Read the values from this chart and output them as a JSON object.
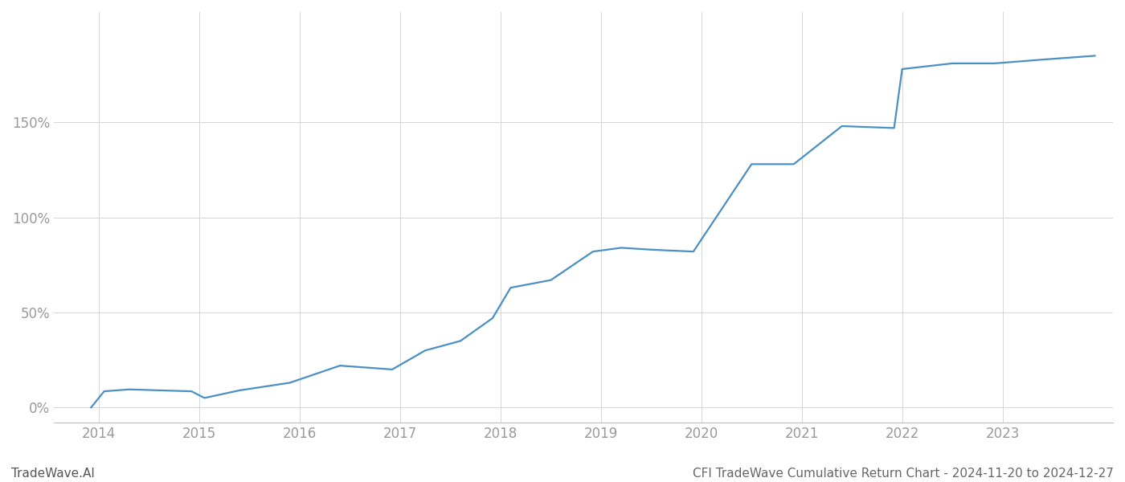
{
  "title": "CFI TradeWave Cumulative Return Chart - 2024-11-20 to 2024-12-27",
  "watermark": "TradeWave.AI",
  "line_color": "#4a90c4",
  "background_color": "#ffffff",
  "grid_color": "#d0d0d0",
  "x_years": [
    2014,
    2015,
    2016,
    2017,
    2018,
    2019,
    2020,
    2021,
    2022,
    2023
  ],
  "x_data": [
    2013.92,
    2014.05,
    2014.3,
    2014.6,
    2014.92,
    2015.05,
    2015.4,
    2015.9,
    2016.4,
    2016.92,
    2017.25,
    2017.6,
    2017.92,
    2018.1,
    2018.5,
    2018.92,
    2019.2,
    2019.5,
    2019.92,
    2020.5,
    2020.92,
    2021.4,
    2021.92,
    2022.0,
    2022.5,
    2022.92,
    2023.4,
    2023.92
  ],
  "y_data": [
    0.0,
    8.5,
    9.5,
    9.0,
    8.5,
    5.0,
    9.0,
    13.0,
    22.0,
    20.0,
    30.0,
    35.0,
    47.0,
    63.0,
    67.0,
    82.0,
    84.0,
    83.0,
    82.0,
    128.0,
    128.0,
    148.0,
    147.0,
    178.0,
    181.0,
    181.0,
    183.0,
    185.0
  ],
  "ylim": [
    -8,
    208
  ],
  "yticks": [
    0,
    50,
    100,
    150
  ],
  "ytick_labels": [
    "0%",
    "50%",
    "100%",
    "150%"
  ],
  "tick_label_color": "#999999",
  "title_color": "#666666",
  "watermark_color": "#555555",
  "line_width": 1.6,
  "title_fontsize": 11,
  "watermark_fontsize": 11,
  "tick_fontsize": 12
}
